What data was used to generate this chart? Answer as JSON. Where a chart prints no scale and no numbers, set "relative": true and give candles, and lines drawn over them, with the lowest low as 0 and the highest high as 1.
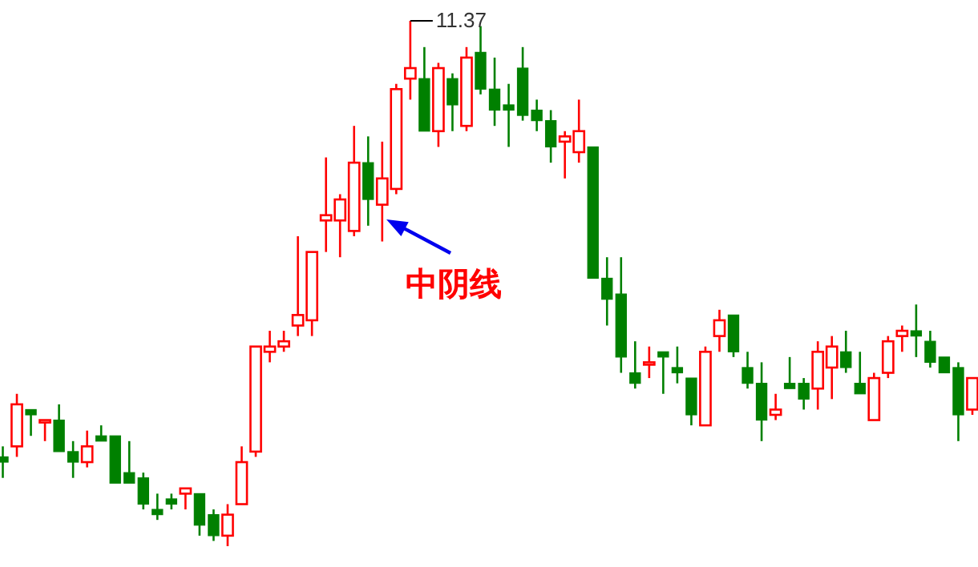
{
  "chart_data": {
    "type": "candlestick",
    "relative": true,
    "categories": [
      null,
      null,
      null,
      null,
      null,
      null,
      null,
      null,
      null,
      null,
      null,
      null,
      null,
      null,
      null,
      null,
      null,
      null,
      null,
      null,
      null,
      null,
      null,
      null,
      null,
      null,
      null,
      null,
      null,
      null,
      null,
      null,
      null,
      null,
      null,
      null,
      null,
      null,
      null,
      null,
      null,
      null,
      null,
      null,
      null,
      null,
      null,
      null,
      null,
      null,
      null,
      null,
      null,
      null,
      null,
      null,
      null,
      null,
      null,
      null,
      null,
      null,
      null,
      null,
      null,
      null,
      null,
      null,
      null,
      null
    ],
    "ohlc": [
      [
        0.17,
        0.19,
        0.13,
        0.16
      ],
      [
        0.19,
        0.29,
        0.17,
        0.27
      ],
      [
        0.26,
        0.26,
        0.21,
        0.25
      ],
      [
        0.24,
        0.24,
        0.2,
        0.24
      ],
      [
        0.24,
        0.27,
        0.18,
        0.18
      ],
      [
        0.18,
        0.2,
        0.13,
        0.16
      ],
      [
        0.16,
        0.22,
        0.15,
        0.19
      ],
      [
        0.21,
        0.23,
        0.2,
        0.2
      ],
      [
        0.21,
        0.21,
        0.12,
        0.12
      ],
      [
        0.14,
        0.2,
        0.12,
        0.12
      ],
      [
        0.13,
        0.14,
        0.07,
        0.08
      ],
      [
        0.07,
        0.1,
        0.05,
        0.06
      ],
      [
        0.09,
        0.1,
        0.07,
        0.08
      ],
      [
        0.1,
        0.11,
        0.07,
        0.11
      ],
      [
        0.1,
        0.1,
        0.02,
        0.04
      ],
      [
        0.06,
        0.07,
        0.01,
        0.02
      ],
      [
        0.02,
        0.08,
        0.0,
        0.06
      ],
      [
        0.08,
        0.19,
        0.08,
        0.16
      ],
      [
        0.18,
        0.38,
        0.17,
        0.38
      ],
      [
        0.37,
        0.41,
        0.35,
        0.38
      ],
      [
        0.38,
        0.41,
        0.37,
        0.39
      ],
      [
        0.42,
        0.59,
        0.4,
        0.44
      ],
      [
        0.43,
        0.56,
        0.4,
        0.56
      ],
      [
        0.62,
        0.74,
        0.56,
        0.63
      ],
      [
        0.62,
        0.67,
        0.55,
        0.66
      ],
      [
        0.6,
        0.8,
        0.59,
        0.73
      ],
      [
        0.73,
        0.78,
        0.61,
        0.66
      ],
      [
        0.65,
        0.77,
        0.58,
        0.7
      ],
      [
        0.68,
        0.88,
        0.67,
        0.87
      ],
      [
        0.89,
        1.0,
        0.85,
        0.91
      ],
      [
        0.89,
        0.95,
        0.79,
        0.79
      ],
      [
        0.79,
        0.92,
        0.76,
        0.91
      ],
      [
        0.89,
        0.9,
        0.79,
        0.84
      ],
      [
        0.8,
        0.95,
        0.79,
        0.93
      ],
      [
        0.94,
        0.99,
        0.86,
        0.87
      ],
      [
        0.87,
        0.93,
        0.8,
        0.83
      ],
      [
        0.84,
        0.88,
        0.76,
        0.83
      ],
      [
        0.91,
        0.95,
        0.81,
        0.82
      ],
      [
        0.83,
        0.85,
        0.79,
        0.81
      ],
      [
        0.81,
        0.83,
        0.73,
        0.76
      ],
      [
        0.77,
        0.79,
        0.7,
        0.78
      ],
      [
        0.75,
        0.85,
        0.73,
        0.79
      ],
      [
        0.76,
        0.76,
        0.51,
        0.51
      ],
      [
        0.51,
        0.55,
        0.42,
        0.47
      ],
      [
        0.48,
        0.55,
        0.33,
        0.36
      ],
      [
        0.33,
        0.39,
        0.3,
        0.31
      ],
      [
        0.35,
        0.38,
        0.32,
        0.35
      ],
      [
        0.37,
        0.37,
        0.29,
        0.36
      ],
      [
        0.34,
        0.38,
        0.31,
        0.33
      ],
      [
        0.32,
        0.32,
        0.23,
        0.25
      ],
      [
        0.23,
        0.38,
        0.23,
        0.37
      ],
      [
        0.4,
        0.45,
        0.37,
        0.43
      ],
      [
        0.44,
        0.44,
        0.36,
        0.37
      ],
      [
        0.34,
        0.37,
        0.3,
        0.31
      ],
      [
        0.31,
        0.35,
        0.2,
        0.24
      ],
      [
        0.25,
        0.29,
        0.24,
        0.26
      ],
      [
        0.31,
        0.36,
        0.3,
        0.3
      ],
      [
        0.31,
        0.32,
        0.26,
        0.28
      ],
      [
        0.3,
        0.39,
        0.26,
        0.37
      ],
      [
        0.34,
        0.4,
        0.28,
        0.38
      ],
      [
        0.37,
        0.41,
        0.33,
        0.34
      ],
      [
        0.31,
        0.37,
        0.29,
        0.29
      ],
      [
        0.24,
        0.33,
        0.24,
        0.32
      ],
      [
        0.33,
        0.4,
        0.32,
        0.39
      ],
      [
        0.4,
        0.42,
        0.37,
        0.41
      ],
      [
        0.41,
        0.46,
        0.36,
        0.4
      ],
      [
        0.39,
        0.41,
        0.34,
        0.35
      ],
      [
        0.36,
        0.36,
        0.33,
        0.33
      ],
      [
        0.34,
        0.35,
        0.2,
        0.25
      ],
      [
        0.26,
        0.32,
        0.25,
        0.32
      ]
    ],
    "colors": [
      "#008000",
      "#ff0000",
      "#008000",
      "#ff0000",
      "#008000",
      "#008000",
      "#ff0000",
      "#008000",
      "#008000",
      "#008000",
      "#008000",
      "#008000",
      "#008000",
      "#ff0000",
      "#008000",
      "#008000",
      "#ff0000",
      "#ff0000",
      "#ff0000",
      "#ff0000",
      "#ff0000",
      "#ff0000",
      "#ff0000",
      "#ff0000",
      "#ff0000",
      "#ff0000",
      "#008000",
      "#ff0000",
      "#ff0000",
      "#ff0000",
      "#008000",
      "#ff0000",
      "#008000",
      "#ff0000",
      "#008000",
      "#008000",
      "#008000",
      "#008000",
      "#008000",
      "#008000",
      "#ff0000",
      "#ff0000",
      "#008000",
      "#008000",
      "#008000",
      "#008000",
      "#ff0000",
      "#008000",
      "#008000",
      "#008000",
      "#ff0000",
      "#ff0000",
      "#008000",
      "#008000",
      "#008000",
      "#ff0000",
      "#008000",
      "#008000",
      "#ff0000",
      "#ff0000",
      "#008000",
      "#008000",
      "#ff0000",
      "#ff0000",
      "#ff0000",
      "#008000",
      "#008000",
      "#008000",
      "#008000",
      "#ff0000"
    ],
    "annotations": [
      "11.37",
      "中阴线"
    ]
  }
}
